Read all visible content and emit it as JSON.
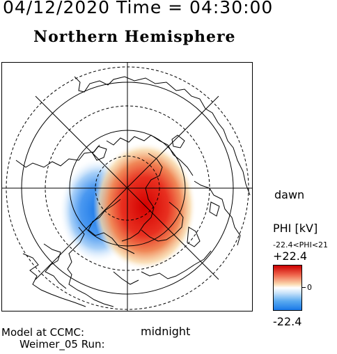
{
  "header": {
    "title": "04/12/2020 Time = 04:30:00",
    "subtitle": "Northern Hemisphere"
  },
  "map": {
    "labels": {
      "dawn": "dawn",
      "midnight": "midnight"
    },
    "colors": {
      "positive": "#d40000",
      "negative": "#1a78e8",
      "neutral": "#ffffff"
    }
  },
  "colorbar": {
    "quantity": "PHI [kV]",
    "range_text": "-22.4<PHI<21",
    "max_label": "+22.4",
    "zero_label": "0",
    "min_label": "-22.4"
  },
  "footer": {
    "line1": "Model at CCMC:",
    "line2": "Weimer_05 Run:"
  }
}
